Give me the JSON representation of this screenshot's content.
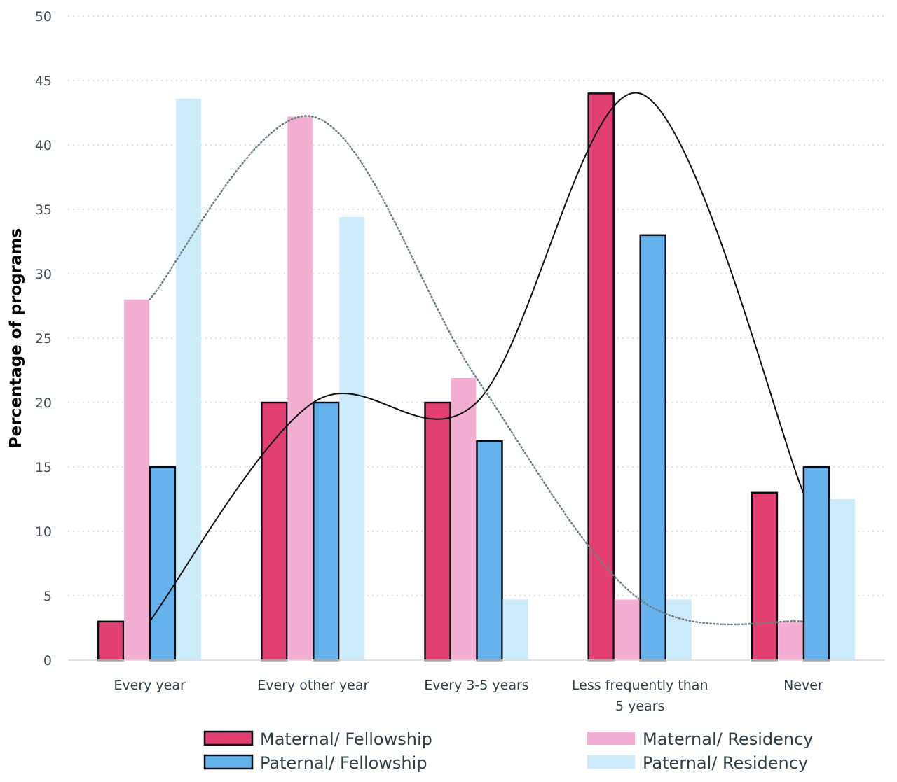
{
  "chart_data": {
    "type": "bar",
    "title": "",
    "xlabel": "",
    "ylabel": "Percentage of programs",
    "ylim": [
      0,
      50
    ],
    "yticks": [
      0,
      5,
      10,
      15,
      20,
      25,
      30,
      35,
      40,
      45,
      50
    ],
    "grid": true,
    "categories": [
      [
        "Every year"
      ],
      [
        "Every other year"
      ],
      [
        "Every 3-5 years"
      ],
      [
        "Less frequently than",
        "5 years"
      ],
      [
        "Never"
      ]
    ],
    "series": [
      {
        "name": "Maternal/ Fellowship",
        "values": [
          3,
          20,
          20,
          44,
          13
        ],
        "color": "#e23f72",
        "outlined": true
      },
      {
        "name": "Maternal/ Residency",
        "values": [
          28,
          42.2,
          21.9,
          4.7,
          3
        ],
        "color": "#f2afd1",
        "outlined": false
      },
      {
        "name": "Paternal/ Fellowship",
        "values": [
          15,
          20,
          17,
          33,
          15
        ],
        "color": "#66b2ec",
        "outlined": true
      },
      {
        "name": "Paternal/ Residency",
        "values": [
          43.6,
          34.4,
          4.7,
          4.7,
          12.5
        ],
        "color": "#cdeafa",
        "outlined": false
      }
    ],
    "trendlines": [
      {
        "series": "Maternal/ Fellowship",
        "style": "solid",
        "color": "#111111"
      },
      {
        "series": "Maternal/ Residency",
        "style": "dotted",
        "color": "#6f7f88"
      }
    ],
    "legend": {
      "placement": "bottom",
      "items": [
        "Maternal/ Fellowship",
        "Maternal/ Residency",
        "Paternal/ Fellowship",
        "Paternal/ Residency"
      ]
    }
  }
}
